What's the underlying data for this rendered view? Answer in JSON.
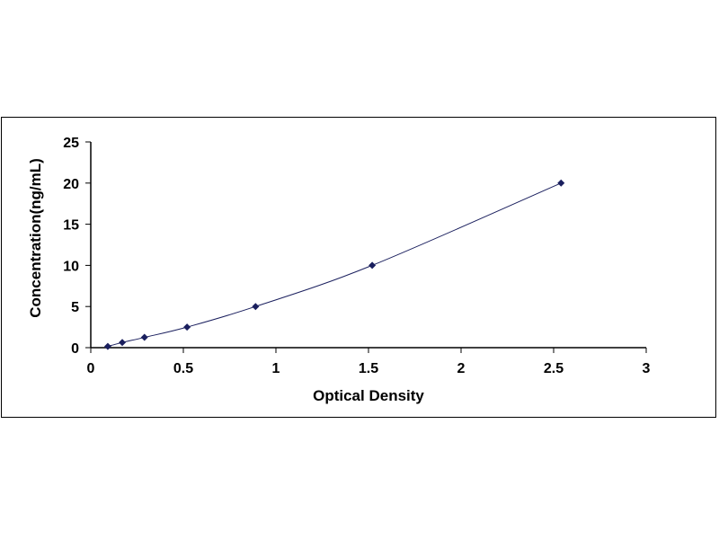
{
  "chart_data": {
    "type": "scatter",
    "xlabel": "Optical Density",
    "ylabel": "Concentration(ng/mL)",
    "xlim": [
      0,
      3
    ],
    "ylim": [
      0,
      25
    ],
    "xticks": [
      "0",
      "0.5",
      "1",
      "1.5",
      "2",
      "2.5",
      "3"
    ],
    "yticks": [
      "0",
      "5",
      "10",
      "15",
      "20",
      "25"
    ],
    "grid": false,
    "marker_color": "#1a1f5e",
    "line_color": "#1a1f5e",
    "series": [
      {
        "x": [
          0.092,
          0.17,
          0.29,
          0.52,
          0.89,
          1.52,
          2.54
        ],
        "y": [
          0.156,
          0.625,
          1.25,
          2.5,
          5,
          10,
          20
        ]
      }
    ]
  }
}
